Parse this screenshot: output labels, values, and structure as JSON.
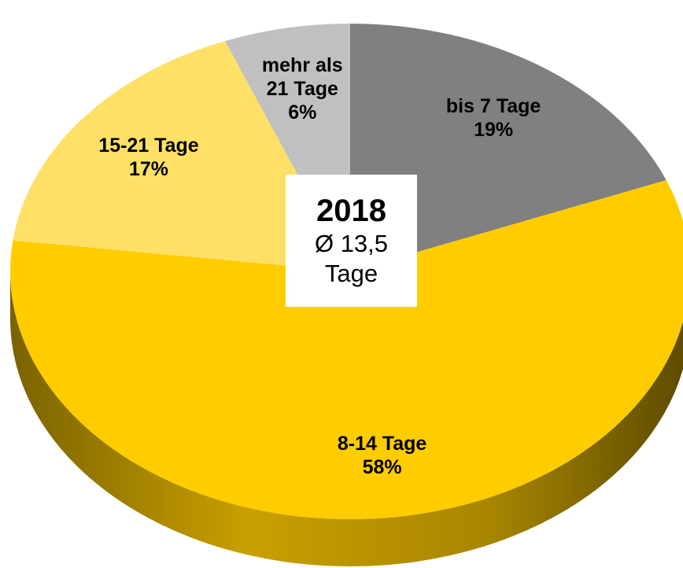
{
  "chart_data": {
    "type": "pie",
    "categories": [
      "bis 7 Tage",
      "8-14 Tage",
      "15-21 Tage",
      "mehr als 21 Tage"
    ],
    "values": [
      19,
      58,
      17,
      6
    ],
    "value_labels": [
      "19%",
      "58%",
      "17%",
      "6%"
    ],
    "colors": [
      "#808080",
      "#ffcc00",
      "#ffe066",
      "#c0c0c0"
    ],
    "center_title": "2018",
    "center_text": "Ø 13,5 Tage"
  }
}
